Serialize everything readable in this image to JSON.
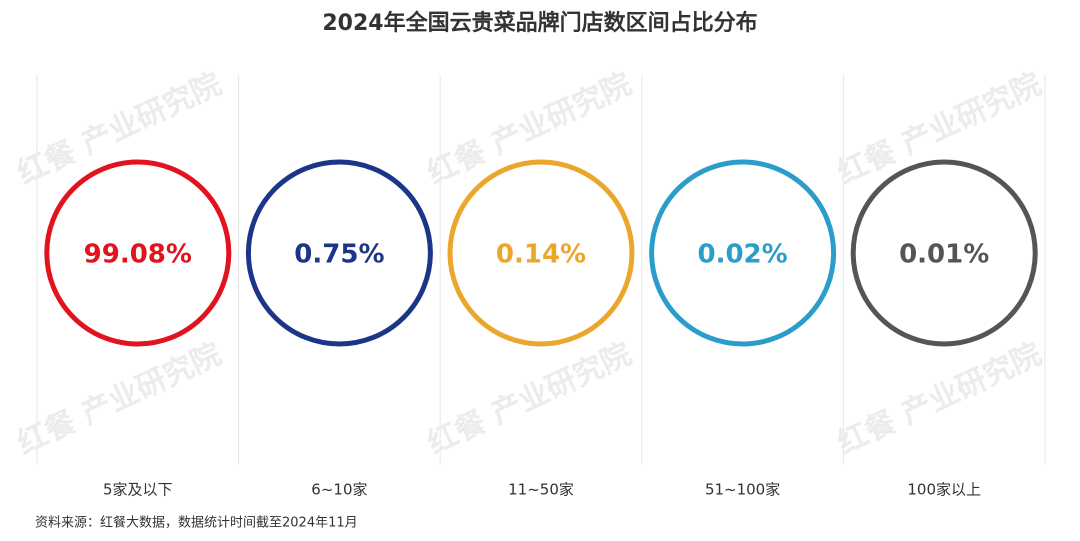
{
  "chart_data": {
    "type": "ring",
    "title": "2024年全国云贵菜品牌门店数区间占比分布",
    "categories": [
      "5家及以下",
      "6~10家",
      "11~50家",
      "51~100家",
      "100家以上"
    ],
    "values": [
      99.08,
      0.75,
      0.14,
      0.02,
      0.01
    ],
    "value_labels": [
      "99.08%",
      "0.75%",
      "0.14%",
      "0.02%",
      "0.01%"
    ],
    "colors": [
      "#e1131f",
      "#1b3589",
      "#eba72b",
      "#2b9dca",
      "#555555"
    ],
    "source": "资料来源：红餐大数据，数据统计时间截至2024年11月",
    "watermark": "红餐 产业研究院"
  }
}
